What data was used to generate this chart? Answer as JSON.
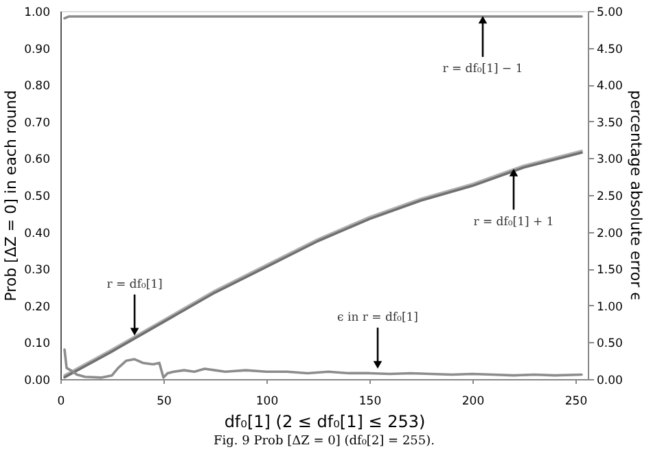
{
  "chart_data": {
    "type": "line",
    "xlabel": "df₀[1] (2 ≤ df₀[1] ≤ 253)",
    "ylabel": "Prob [ΔZ = 0] in each round",
    "y2label": "percentage absolute error ϵ",
    "xlim": [
      0,
      256
    ],
    "xticks": [
      0,
      50,
      100,
      150,
      200,
      250
    ],
    "ylim": [
      0,
      1
    ],
    "yticks": [
      {
        "value": 0,
        "label": "0.00"
      },
      {
        "value": 0.1,
        "label": "0.10"
      },
      {
        "value": 0.2,
        "label": "0.20"
      },
      {
        "value": 0.3,
        "label": "0.30"
      },
      {
        "value": 0.4,
        "label": "0.40"
      },
      {
        "value": 0.5,
        "label": "0.50"
      },
      {
        "value": 0.6,
        "label": "0.60"
      },
      {
        "value": 0.7,
        "label": "0.70"
      },
      {
        "value": 0.8,
        "label": "0.80"
      },
      {
        "value": 0.9,
        "label": "0.90"
      },
      {
        "value": 1,
        "label": "1.00"
      }
    ],
    "y2lim": [
      0,
      5
    ],
    "y2ticks": [
      {
        "value": 0,
        "label": "0.00"
      },
      {
        "value": 0.5,
        "label": "0.50"
      },
      {
        "value": 1,
        "label": "1.00"
      },
      {
        "value": 1.5,
        "label": "1.50"
      },
      {
        "value": 2,
        "label": "2.00"
      },
      {
        "value": 2.5,
        "label": "2.50"
      },
      {
        "value": 3,
        "label": "3.00"
      },
      {
        "value": 3.5,
        "label": "3.50"
      },
      {
        "value": 4,
        "label": "4.00"
      },
      {
        "value": 4.5,
        "label": "4.50"
      },
      {
        "value": 5,
        "label": "5.00"
      }
    ],
    "grid": false,
    "marker": "none",
    "line_style": "solid",
    "series": [
      {
        "color": "#8c8c8c",
        "x": [
          2,
          4,
          10,
          50,
          100,
          150,
          200,
          253
        ],
        "values": [
          0.98,
          0.985,
          0.985,
          0.985,
          0.985,
          0.985,
          0.985,
          0.985
        ]
      },
      {
        "color": "#b0b0b0",
        "x": [
          2,
          25,
          50,
          75,
          100,
          125,
          150,
          175,
          200,
          225,
          253
        ],
        "values": [
          0.01,
          0.08,
          0.16,
          0.24,
          0.31,
          0.38,
          0.44,
          0.49,
          0.53,
          0.58,
          0.62
        ]
      },
      {
        "color": "#707070",
        "x": [
          2,
          25,
          50,
          75,
          100,
          125,
          150,
          175,
          200,
          225,
          253
        ],
        "values": [
          0.005,
          0.075,
          0.155,
          0.235,
          0.305,
          0.375,
          0.435,
          0.485,
          0.525,
          0.575,
          0.615
        ]
      },
      {
        "color": "#8c8c8c",
        "axis": "y2",
        "x": [
          2,
          3,
          5,
          8,
          12,
          20,
          25,
          28,
          32,
          36,
          40,
          45,
          48,
          50,
          52,
          55,
          60,
          65,
          70,
          75,
          80,
          90,
          100,
          110,
          120,
          130,
          140,
          150,
          160,
          170,
          180,
          190,
          200,
          210,
          220,
          230,
          240,
          253
        ],
        "values": [
          0.4,
          0.15,
          0.12,
          0.06,
          0.03,
          0.02,
          0.05,
          0.15,
          0.25,
          0.27,
          0.22,
          0.2,
          0.22,
          0.02,
          0.08,
          0.1,
          0.12,
          0.1,
          0.14,
          0.12,
          0.1,
          0.12,
          0.1,
          0.1,
          0.08,
          0.1,
          0.08,
          0.08,
          0.07,
          0.08,
          0.07,
          0.06,
          0.07,
          0.06,
          0.05,
          0.06,
          0.05,
          0.06
        ]
      }
    ],
    "annotations": [
      {
        "text": "r = df₀[1] − 1",
        "x": 205,
        "y": 0.985
      },
      {
        "text": "r = df₀[1] + 1",
        "x": 220,
        "y": 0.57
      },
      {
        "text": "r = df₀[1]",
        "x": 36,
        "y": 0.12
      },
      {
        "text": "ϵ in r = df₀[1]",
        "x": 154,
        "y": 0.03
      },
      "Fig. 9    Prob [ΔZ = 0] (df₀[2] = 255)."
    ]
  }
}
